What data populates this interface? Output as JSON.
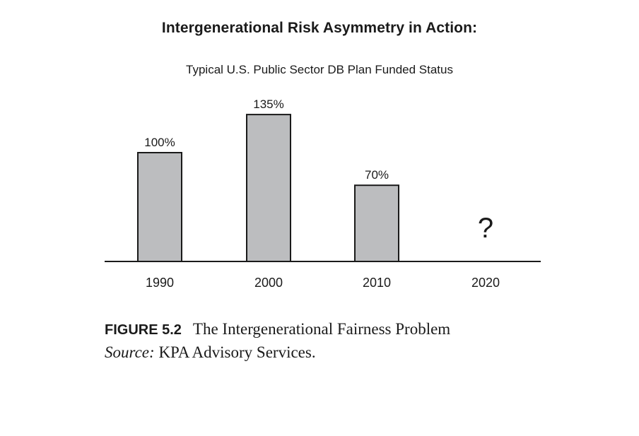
{
  "chart_data": {
    "type": "bar",
    "title": "Intergenerational Risk Asymmetry in Action:",
    "subtitle": "Typical U.S. Public Sector DB Plan Funded Status",
    "categories": [
      "1990",
      "2000",
      "2010",
      "2020"
    ],
    "values": [
      100,
      135,
      70,
      null
    ],
    "data_labels": [
      "100%",
      "135%",
      "70%",
      "?"
    ],
    "ylim": [
      0,
      150
    ],
    "grid": false,
    "bar_color": "#bcbdbf",
    "edge_color": "#1a1a1a"
  },
  "caption": {
    "figure_label": "FIGURE 5.2",
    "figure_text": "The Intergenerational Fairness Problem",
    "source_label": "Source:",
    "source_text": "KPA Advisory Services."
  }
}
